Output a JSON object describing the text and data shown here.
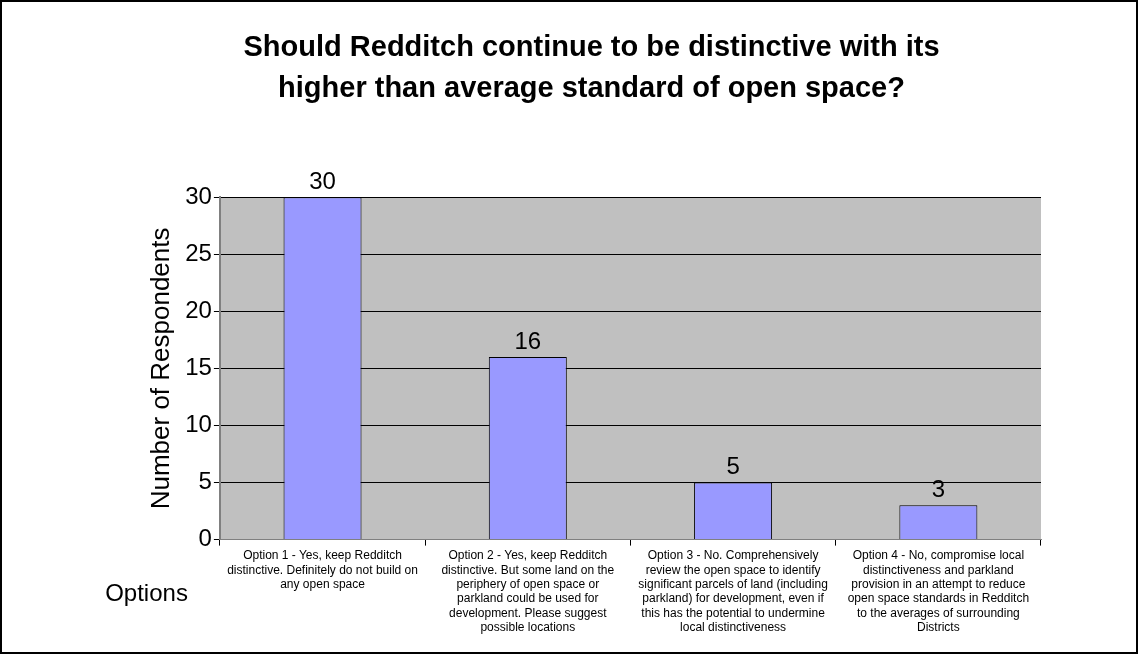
{
  "chart_data": {
    "type": "bar",
    "title": "Should Redditch continue to be distinctive with its higher than average standard of open space?",
    "xlabel": "Options",
    "ylabel": "Number of Respondents",
    "categories": [
      "Option 1 - Yes, keep Redditch distinctive. Definitely do not build on any open space",
      "Option 2 - Yes, keep Redditch distinctive. But some land on the periphery of open space or parkland could be used for development. Please suggest possible locations",
      "Option 3 - No. Comprehensively review the open space to identify significant parcels of land (including parkland) for development, even if this has the potential to undermine local distinctiveness",
      "Option 4 - No, compromise local distinctiveness and parkland provision in an attempt to reduce open space standards in Redditch to the averages of surrounding Districts"
    ],
    "values": [
      30,
      16,
      5,
      3
    ],
    "color": "#9999ff",
    "ylim": [
      0,
      30
    ],
    "yticks": [
      0,
      5,
      10,
      15,
      20,
      25,
      30
    ],
    "grid": "y",
    "data_labels": true
  }
}
